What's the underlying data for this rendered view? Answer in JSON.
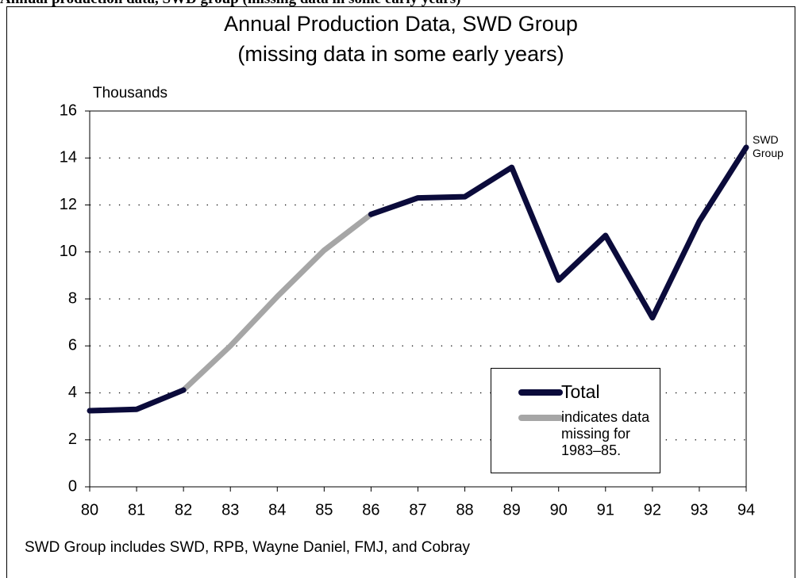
{
  "caption": "Annual production data, SWD group (missing data in some early years)",
  "chart_data": {
    "type": "line",
    "title": "Annual Production Data, SWD Group",
    "subtitle": "(missing data in some early years)",
    "y_label": "Thousands",
    "annotation": "SWD Group",
    "footnote": "SWD Group includes SWD, RPB, Wayne Daniel, FMJ, and Cobray",
    "categories": [
      "80",
      "81",
      "82",
      "83",
      "84",
      "85",
      "86",
      "87",
      "88",
      "89",
      "90",
      "91",
      "92",
      "93",
      "94"
    ],
    "series": [
      {
        "name": "Total",
        "color": "#0b0b3b",
        "values": [
          3.24,
          3.3,
          4.12,
          null,
          null,
          null,
          11.6,
          12.3,
          12.35,
          13.6,
          8.8,
          10.7,
          7.2,
          11.3,
          14.45
        ]
      },
      {
        "name": "indicates data missing for 1983–85.",
        "color": "#a6a6a6",
        "values": [
          null,
          null,
          4.12,
          6.0,
          8.1,
          10.07,
          11.6,
          null,
          null,
          null,
          null,
          null,
          null,
          null,
          null
        ]
      }
    ],
    "ylim": [
      0,
      16
    ],
    "yticks": [
      0,
      2,
      4,
      6,
      8,
      10,
      12,
      14,
      16
    ],
    "grid": true,
    "legend": "lower right"
  }
}
